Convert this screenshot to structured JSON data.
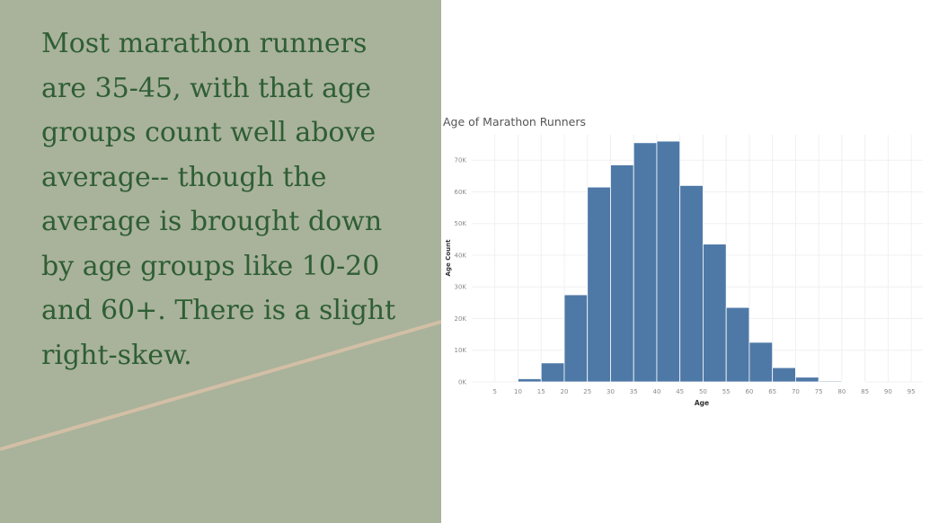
{
  "caption": "Most marathon runners are 35-45, with that age groups count well above average-- though the average is brought down by age groups like 10-20 and 60+. There is a slight right-skew.",
  "colors": {
    "left_panel": "#a9b29a",
    "caption_text": "#2e5e34",
    "decorative_line": "#d2bfa6",
    "bar_fill": "#4e79a7"
  },
  "chart_data": {
    "type": "bar",
    "title": "Age of Marathon Runners",
    "xlabel": "Age",
    "ylabel": "Age Count",
    "x_ticks": [
      5,
      10,
      15,
      20,
      25,
      30,
      35,
      40,
      45,
      50,
      55,
      60,
      65,
      70,
      75,
      80,
      85,
      90,
      95
    ],
    "y_ticks": [
      "0K",
      "10K",
      "20K",
      "30K",
      "40K",
      "50K",
      "60K",
      "70K"
    ],
    "ylim": [
      0,
      78000
    ],
    "bin_width": 5,
    "bins": [
      {
        "start": 10,
        "value": 1000
      },
      {
        "start": 15,
        "value": 6000
      },
      {
        "start": 20,
        "value": 27500
      },
      {
        "start": 25,
        "value": 61500
      },
      {
        "start": 30,
        "value": 68500
      },
      {
        "start": 35,
        "value": 75500
      },
      {
        "start": 40,
        "value": 76000
      },
      {
        "start": 45,
        "value": 62000
      },
      {
        "start": 50,
        "value": 43500
      },
      {
        "start": 55,
        "value": 23500
      },
      {
        "start": 60,
        "value": 12500
      },
      {
        "start": 65,
        "value": 4500
      },
      {
        "start": 70,
        "value": 1500
      },
      {
        "start": 75,
        "value": 300
      },
      {
        "start": 80,
        "value": 80
      }
    ],
    "grid": true
  }
}
